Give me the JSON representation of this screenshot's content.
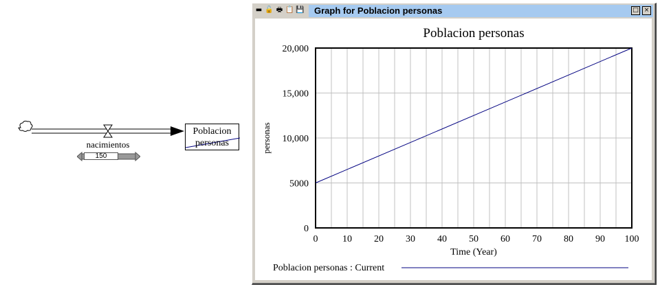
{
  "diagram": {
    "stock_label": "Poblacion personas",
    "flow_label": "nacimientos",
    "slider_value": "150",
    "cloud_icon": "cloud-source-icon",
    "valve_icon": "valve-icon"
  },
  "graph_window": {
    "title": "Graph for Poblacion personas",
    "toolbar_icons": [
      "minimize-bar-icon",
      "lock-icon",
      "print-icon",
      "copy-icon",
      "save-icon"
    ],
    "buttons": {
      "restore": "□",
      "close": "×"
    }
  },
  "chart_data": {
    "type": "line",
    "title": "Poblacion personas",
    "xlabel": "Time (Year)",
    "ylabel": "personas",
    "xlim": [
      0,
      100
    ],
    "ylim": [
      0,
      20000
    ],
    "x_ticks": [
      0,
      10,
      20,
      30,
      40,
      50,
      60,
      70,
      80,
      90,
      100
    ],
    "y_ticks": [
      {
        "value": 0,
        "label": "0"
      },
      {
        "value": 5000,
        "label": "5000"
      },
      {
        "value": 10000,
        "label": "10,000"
      },
      {
        "value": 15000,
        "label": "15,000"
      },
      {
        "value": 20000,
        "label": "20,000"
      }
    ],
    "grid": true,
    "series": [
      {
        "name": "Poblacion personas : Current",
        "color": "#000080",
        "x": [
          0,
          100
        ],
        "y": [
          5000,
          20000
        ]
      }
    ],
    "legend_position": "bottom"
  }
}
